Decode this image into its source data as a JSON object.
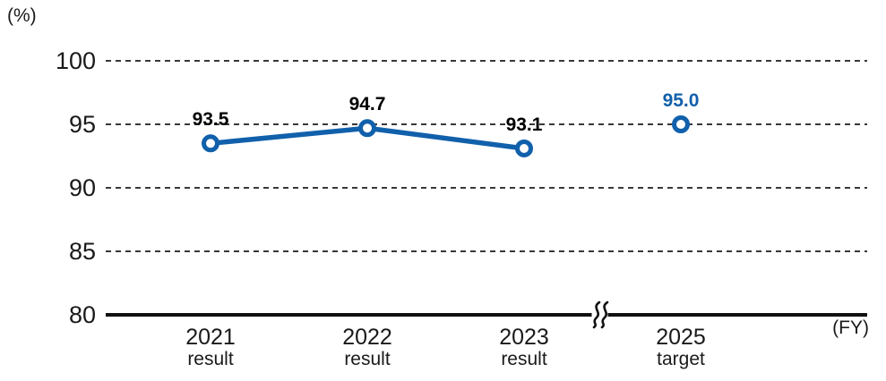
{
  "chart_data": {
    "type": "line",
    "title": "",
    "y_unit_label": "(%)",
    "x_unit_label": "(FY)",
    "ylim": [
      80,
      100
    ],
    "yticks": [
      100,
      95,
      90,
      85,
      80
    ],
    "grid": "dashed-horizontal",
    "legend": "none",
    "axis_break_between": [
      "2023",
      "2025"
    ],
    "categories": [
      {
        "year": "2021",
        "kind": "result"
      },
      {
        "year": "2022",
        "kind": "result"
      },
      {
        "year": "2023",
        "kind": "result"
      },
      {
        "year": "2025",
        "kind": "target"
      }
    ],
    "series": [
      {
        "name": "result",
        "connected": true,
        "points": [
          {
            "category": "2021",
            "value": 93.5,
            "label": "93.5"
          },
          {
            "category": "2022",
            "value": 94.7,
            "label": "94.7"
          },
          {
            "category": "2023",
            "value": 93.1,
            "label": "93.1"
          }
        ]
      },
      {
        "name": "target",
        "connected": false,
        "points": [
          {
            "category": "2025",
            "value": 95.0,
            "label": "95.0"
          }
        ]
      }
    ],
    "colors": {
      "line": "#1160ab",
      "marker_ring": "#1160ab",
      "marker_fill": "#ffffff",
      "result_value_label": "#000000",
      "target_value_label": "#1160ab",
      "axis": "#111111",
      "grid": "#1c1c1c",
      "text": "#1a1a1a"
    }
  }
}
